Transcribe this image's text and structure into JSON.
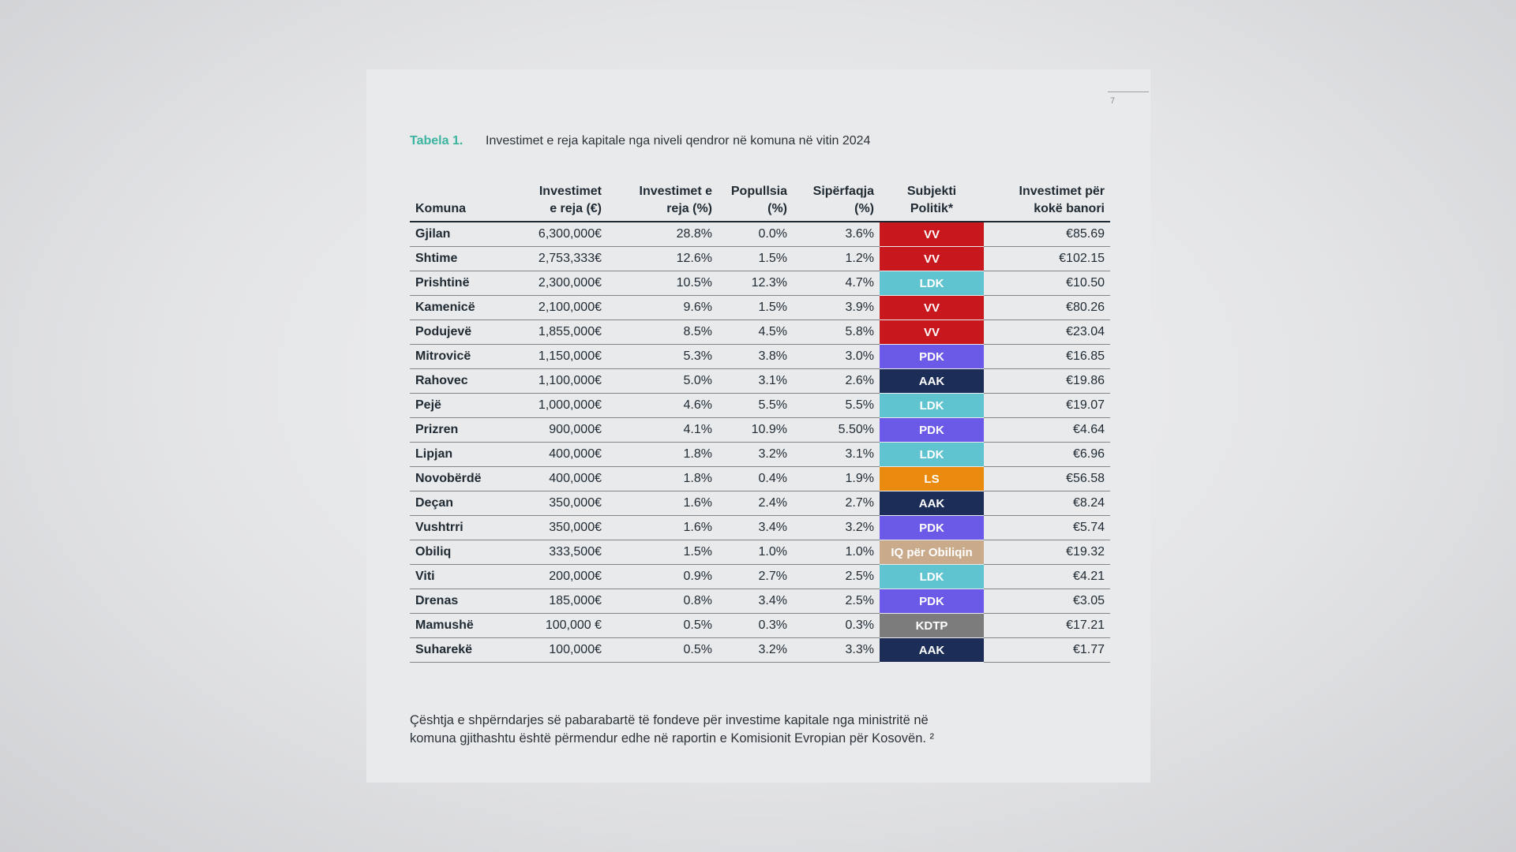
{
  "page_number": "7",
  "caption": {
    "label": "Tabela 1.",
    "title": "Investimet e reja kapitale nga niveli qendror në komuna në vitin 2024"
  },
  "colors": {
    "VV": "#c8171d",
    "LDK": "#5fc4d0",
    "PDK": "#6b5ae8",
    "AAK": "#1c2d57",
    "LS": "#ea8a0f",
    "IQ për Obiliqin": "#c9ab8c",
    "KDTP": "#7c7c7c"
  },
  "table": {
    "headers": {
      "komuna": "Komuna",
      "inv_a": "Investimet",
      "inv_b": "e reja (€)",
      "invp_a": "Investimet e",
      "invp_b": "reja (%)",
      "pop_a": "Popullsia",
      "pop_b": "(%)",
      "sip_a": "Sipërfaqja",
      "sip_b": "(%)",
      "sub_a": "Subjekti",
      "sub_b": "Politik*",
      "pc_a": "Investimet për",
      "pc_b": "kokë banori"
    },
    "rows": [
      {
        "komuna": "Gjilan",
        "inv": "6,300,000€",
        "invp": "28.8%",
        "pop": "0.0%",
        "sip": "3.6%",
        "party": "VV",
        "pc": "€85.69"
      },
      {
        "komuna": "Shtime",
        "inv": "2,753,333€",
        "invp": "12.6%",
        "pop": "1.5%",
        "sip": "1.2%",
        "party": "VV",
        "pc": "€102.15"
      },
      {
        "komuna": "Prishtinë",
        "inv": "2,300,000€",
        "invp": "10.5%",
        "pop": "12.3%",
        "sip": "4.7%",
        "party": "LDK",
        "pc": "€10.50"
      },
      {
        "komuna": "Kamenicë",
        "inv": "2,100,000€",
        "invp": "9.6%",
        "pop": "1.5%",
        "sip": "3.9%",
        "party": "VV",
        "pc": "€80.26"
      },
      {
        "komuna": "Podujevë",
        "inv": "1,855,000€",
        "invp": "8.5%",
        "pop": "4.5%",
        "sip": "5.8%",
        "party": "VV",
        "pc": "€23.04"
      },
      {
        "komuna": "Mitrovicë",
        "inv": "1,150,000€",
        "invp": "5.3%",
        "pop": "3.8%",
        "sip": "3.0%",
        "party": "PDK",
        "pc": "€16.85"
      },
      {
        "komuna": "Rahovec",
        "inv": "1,100,000€",
        "invp": "5.0%",
        "pop": "3.1%",
        "sip": "2.6%",
        "party": "AAK",
        "pc": "€19.86"
      },
      {
        "komuna": "Pejë",
        "inv": "1,000,000€",
        "invp": "4.6%",
        "pop": "5.5%",
        "sip": "5.5%",
        "party": "LDK",
        "pc": "€19.07"
      },
      {
        "komuna": "Prizren",
        "inv": "900,000€",
        "invp": "4.1%",
        "pop": "10.9%",
        "sip": "5.50%",
        "party": "PDK",
        "pc": "€4.64"
      },
      {
        "komuna": "Lipjan",
        "inv": "400,000€",
        "invp": "1.8%",
        "pop": "3.2%",
        "sip": "3.1%",
        "party": "LDK",
        "pc": "€6.96"
      },
      {
        "komuna": "Novobërdë",
        "inv": "400,000€",
        "invp": "1.8%",
        "pop": "0.4%",
        "sip": "1.9%",
        "party": "LS",
        "pc": "€56.58"
      },
      {
        "komuna": "Deçan",
        "inv": "350,000€",
        "invp": "1.6%",
        "pop": "2.4%",
        "sip": "2.7%",
        "party": "AAK",
        "pc": "€8.24"
      },
      {
        "komuna": "Vushtrri",
        "inv": "350,000€",
        "invp": "1.6%",
        "pop": "3.4%",
        "sip": "3.2%",
        "party": "PDK",
        "pc": "€5.74"
      },
      {
        "komuna": "Obiliq",
        "inv": "333,500€",
        "invp": "1.5%",
        "pop": "1.0%",
        "sip": "1.0%",
        "party": "IQ për Obiliqin",
        "pc": "€19.32"
      },
      {
        "komuna": "Viti",
        "inv": "200,000€",
        "invp": "0.9%",
        "pop": "2.7%",
        "sip": "2.5%",
        "party": "LDK",
        "pc": "€4.21"
      },
      {
        "komuna": "Drenas",
        "inv": "185,000€",
        "invp": "0.8%",
        "pop": "3.4%",
        "sip": "2.5%",
        "party": "PDK",
        "pc": "€3.05"
      },
      {
        "komuna": "Mamushë",
        "inv": "100,000 €",
        "invp": "0.5%",
        "pop": "0.3%",
        "sip": "0.3%",
        "party": "KDTP",
        "pc": "€17.21"
      },
      {
        "komuna": "Suharekë",
        "inv": "100,000€",
        "invp": "0.5%",
        "pop": "3.2%",
        "sip": "3.3%",
        "party": "AAK",
        "pc": "€1.77"
      }
    ]
  },
  "footnote": "Çështja e shpërndarjes së pabarabartë të fondeve për investime kapitale nga ministritë në komuna gjithashtu është përmendur edhe në raportin e Komisionit Evropian për Kosovën. ²"
}
